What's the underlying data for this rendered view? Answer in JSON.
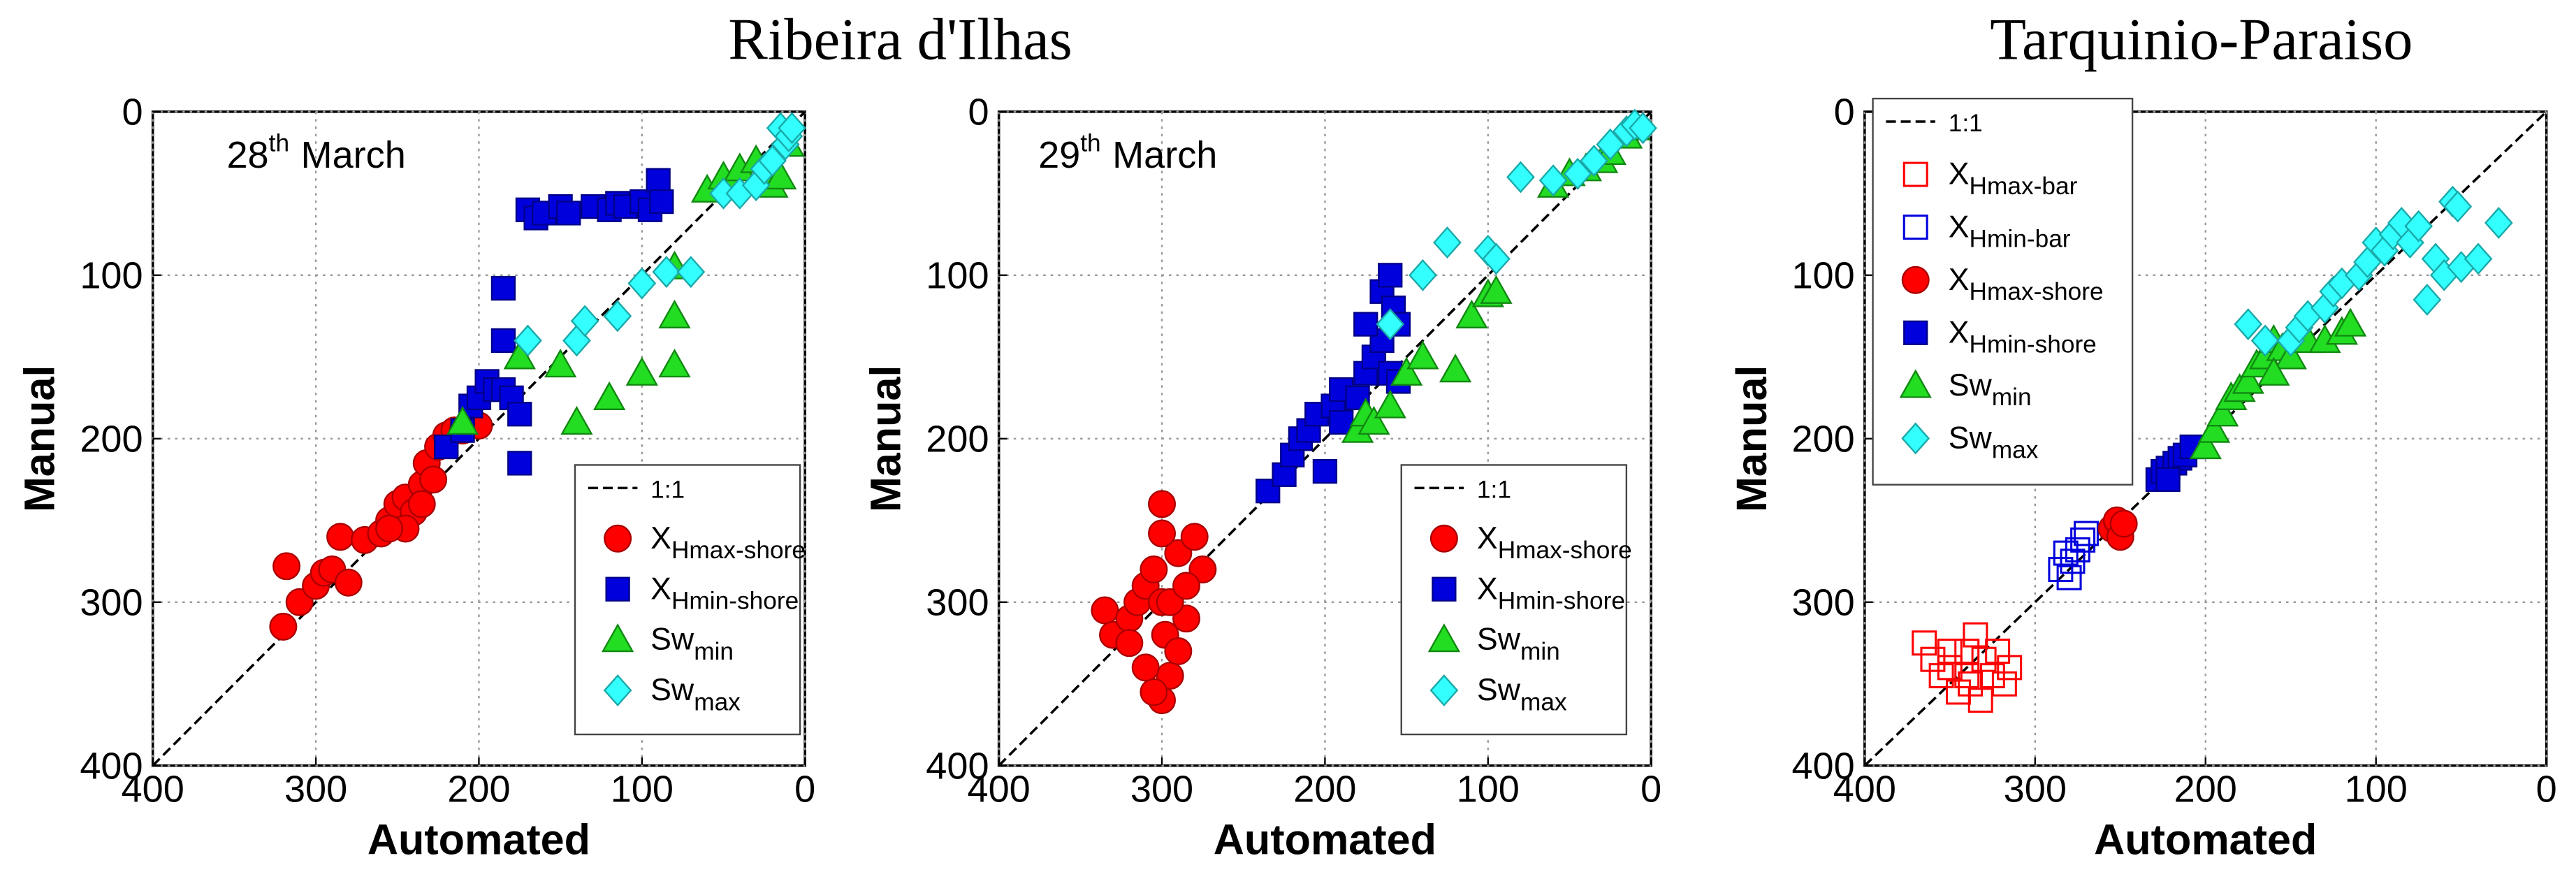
{
  "chart_data": [
    {
      "type": "scatter",
      "title": "Ribeira d'Ilhas",
      "annotation": {
        "text": "28",
        "superscript": "th",
        "text_after": "March"
      },
      "xlabel": "Automated",
      "ylabel": "Manual",
      "xlim": [
        400,
        0
      ],
      "ylim": [
        400,
        0
      ],
      "xticks": [
        400,
        300,
        200,
        100,
        0
      ],
      "yticks": [
        0,
        100,
        200,
        300,
        400
      ],
      "grid": true,
      "legend_loc": "lower right",
      "series": [
        {
          "name": "1:1",
          "marker": "line",
          "color": "#000000",
          "x": [
            400,
            0
          ],
          "values": [
            400,
            0
          ]
        },
        {
          "name": "X",
          "subscript": "Hmax-shore",
          "marker": "circle",
          "color": "#ff0000",
          "filled": true,
          "x": [
            320,
            318,
            310,
            300,
            295,
            290,
            285,
            280,
            270,
            260,
            255,
            250,
            245,
            240,
            235,
            232,
            228,
            225,
            220,
            215,
            210,
            205,
            200,
            235,
            245,
            255
          ],
          "values": [
            315,
            278,
            300,
            290,
            282,
            280,
            260,
            288,
            262,
            258,
            250,
            240,
            236,
            245,
            228,
            215,
            225,
            205,
            198,
            195,
            195,
            190,
            192,
            240,
            255,
            255
          ]
        },
        {
          "name": "X",
          "subscript": "Hmin-shore",
          "marker": "square",
          "color": "#0000dd",
          "filled": true,
          "x": [
            220,
            210,
            205,
            200,
            195,
            190,
            185,
            180,
            175,
            185,
            185,
            170,
            165,
            160,
            150,
            145,
            130,
            120,
            115,
            110,
            100,
            95,
            90,
            88,
            175
          ],
          "values": [
            205,
            195,
            180,
            175,
            165,
            170,
            170,
            175,
            215,
            108,
            140,
            60,
            65,
            62,
            58,
            62,
            58,
            60,
            56,
            58,
            55,
            60,
            42,
            55,
            185
          ]
        },
        {
          "name": "Sw",
          "subscript": "min",
          "marker": "triangle",
          "color": "#22dd22",
          "filled": true,
          "x": [
            210,
            175,
            150,
            140,
            120,
            100,
            80,
            80,
            80,
            60,
            50,
            45,
            40,
            30,
            25,
            20,
            15,
            10
          ],
          "values": [
            190,
            150,
            155,
            190,
            175,
            160,
            95,
            125,
            155,
            48,
            40,
            45,
            35,
            30,
            38,
            45,
            40,
            20
          ]
        },
        {
          "name": "Sw",
          "subscript": "max",
          "marker": "diamond",
          "color": "#33ffff",
          "filled": true,
          "x": [
            170,
            140,
            135,
            115,
            100,
            85,
            70,
            50,
            40,
            30,
            25,
            20,
            15,
            12,
            10,
            8
          ],
          "values": [
            140,
            140,
            128,
            125,
            105,
            98,
            98,
            50,
            50,
            45,
            35,
            30,
            10,
            20,
            15,
            10
          ]
        }
      ]
    },
    {
      "type": "scatter",
      "annotation": {
        "text": "29",
        "superscript": "th",
        "text_after": "March"
      },
      "xlabel": "Automated",
      "ylabel": "Manual",
      "xlim": [
        400,
        0
      ],
      "ylim": [
        400,
        0
      ],
      "xticks": [
        400,
        300,
        200,
        100,
        0
      ],
      "yticks": [
        0,
        100,
        200,
        300,
        400
      ],
      "grid": true,
      "legend_loc": "lower right",
      "series": [
        {
          "name": "1:1",
          "marker": "line",
          "color": "#000000",
          "x": [
            400,
            0
          ],
          "values": [
            400,
            0
          ]
        },
        {
          "name": "X",
          "subscript": "Hmax-shore",
          "marker": "circle",
          "color": "#ff0000",
          "filled": true,
          "x": [
            300,
            335,
            330,
            320,
            315,
            310,
            305,
            300,
            298,
            295,
            300,
            305,
            290,
            285,
            290,
            280,
            275,
            310,
            320,
            295,
            285,
            300
          ],
          "values": [
            240,
            305,
            320,
            310,
            300,
            290,
            280,
            300,
            320,
            345,
            360,
            355,
            330,
            310,
            270,
            260,
            280,
            340,
            325,
            300,
            290,
            258
          ]
        },
        {
          "name": "X",
          "subscript": "Hmin-shore",
          "marker": "square",
          "color": "#0000dd",
          "filled": true,
          "x": [
            235,
            225,
            220,
            215,
            210,
            205,
            195,
            190,
            180,
            175,
            170,
            165,
            165,
            160,
            158,
            155,
            160,
            155,
            175,
            200,
            190
          ],
          "values": [
            232,
            222,
            210,
            200,
            195,
            185,
            180,
            170,
            175,
            160,
            150,
            140,
            110,
            100,
            120,
            130,
            160,
            165,
            130,
            220,
            190
          ]
        },
        {
          "name": "Sw",
          "subscript": "min",
          "marker": "triangle",
          "color": "#22dd22",
          "filled": true,
          "x": [
            180,
            175,
            170,
            160,
            150,
            140,
            120,
            110,
            100,
            95,
            60,
            50,
            40,
            30,
            25,
            15,
            10
          ],
          "values": [
            195,
            185,
            190,
            180,
            160,
            150,
            158,
            125,
            112,
            110,
            45,
            38,
            35,
            30,
            25,
            15,
            10
          ]
        },
        {
          "name": "Sw",
          "subscript": "max",
          "marker": "diamond",
          "color": "#33ffff",
          "filled": true,
          "x": [
            160,
            140,
            125,
            100,
            95,
            80,
            60,
            45,
            35,
            25,
            15,
            10,
            5
          ],
          "values": [
            130,
            100,
            80,
            85,
            90,
            40,
            42,
            38,
            30,
            20,
            12,
            8,
            10
          ]
        }
      ]
    },
    {
      "type": "scatter",
      "title": "Tarquinio-Paraiso",
      "xlabel": "Automated",
      "ylabel": "Manual",
      "xlim": [
        400,
        0
      ],
      "ylim": [
        400,
        0
      ],
      "xticks": [
        400,
        300,
        200,
        100,
        0
      ],
      "yticks": [
        0,
        100,
        200,
        300,
        400
      ],
      "grid": true,
      "legend_loc": "upper left",
      "series": [
        {
          "name": "1:1",
          "marker": "line",
          "color": "#000000",
          "x": [
            400,
            0
          ],
          "values": [
            400,
            0
          ]
        },
        {
          "name": "X",
          "subscript": "Hmax-bar",
          "marker": "square",
          "color": "#ff0000",
          "filled": false,
          "x": [
            365,
            360,
            355,
            350,
            345,
            340,
            338,
            335,
            332,
            330,
            325,
            322,
            318,
            315,
            340,
            350
          ],
          "values": [
            325,
            335,
            345,
            340,
            355,
            330,
            350,
            320,
            360,
            335,
            345,
            330,
            350,
            340,
            345,
            330
          ]
        },
        {
          "name": "X",
          "subscript": "Hmin-bar",
          "marker": "square",
          "color": "#0000dd",
          "filled": false,
          "x": [
            285,
            282,
            280,
            278,
            275,
            272,
            270
          ],
          "values": [
            280,
            270,
            285,
            275,
            268,
            262,
            258
          ]
        },
        {
          "name": "X",
          "subscript": "Hmax-shore",
          "marker": "circle",
          "color": "#ff0000",
          "filled": true,
          "x": [
            255,
            252,
            250,
            248
          ],
          "values": [
            255,
            250,
            260,
            252
          ]
        },
        {
          "name": "X",
          "subscript": "Hmin-shore",
          "marker": "square",
          "color": "#0000dd",
          "filled": true,
          "x": [
            228,
            225,
            222,
            218,
            215,
            212,
            208,
            222
          ],
          "values": [
            225,
            220,
            218,
            215,
            212,
            210,
            205,
            225
          ]
        },
        {
          "name": "Sw",
          "subscript": "min",
          "marker": "triangle",
          "color": "#22dd22",
          "filled": true,
          "x": [
            200,
            195,
            190,
            185,
            180,
            175,
            170,
            165,
            160,
            155,
            150,
            140,
            130,
            120,
            115,
            160
          ],
          "values": [
            205,
            195,
            185,
            175,
            170,
            165,
            155,
            150,
            140,
            145,
            150,
            140,
            140,
            135,
            130,
            160
          ]
        },
        {
          "name": "Sw",
          "subscript": "max",
          "marker": "diamond",
          "color": "#33ffff",
          "filled": true,
          "x": [
            175,
            165,
            150,
            145,
            140,
            130,
            125,
            120,
            110,
            105,
            100,
            95,
            90,
            85,
            80,
            75,
            70,
            65,
            60,
            55,
            52,
            50,
            40,
            28
          ],
          "values": [
            130,
            140,
            140,
            132,
            125,
            120,
            110,
            105,
            100,
            92,
            80,
            85,
            75,
            68,
            80,
            70,
            115,
            90,
            100,
            55,
            58,
            95,
            90,
            68
          ]
        }
      ]
    }
  ]
}
